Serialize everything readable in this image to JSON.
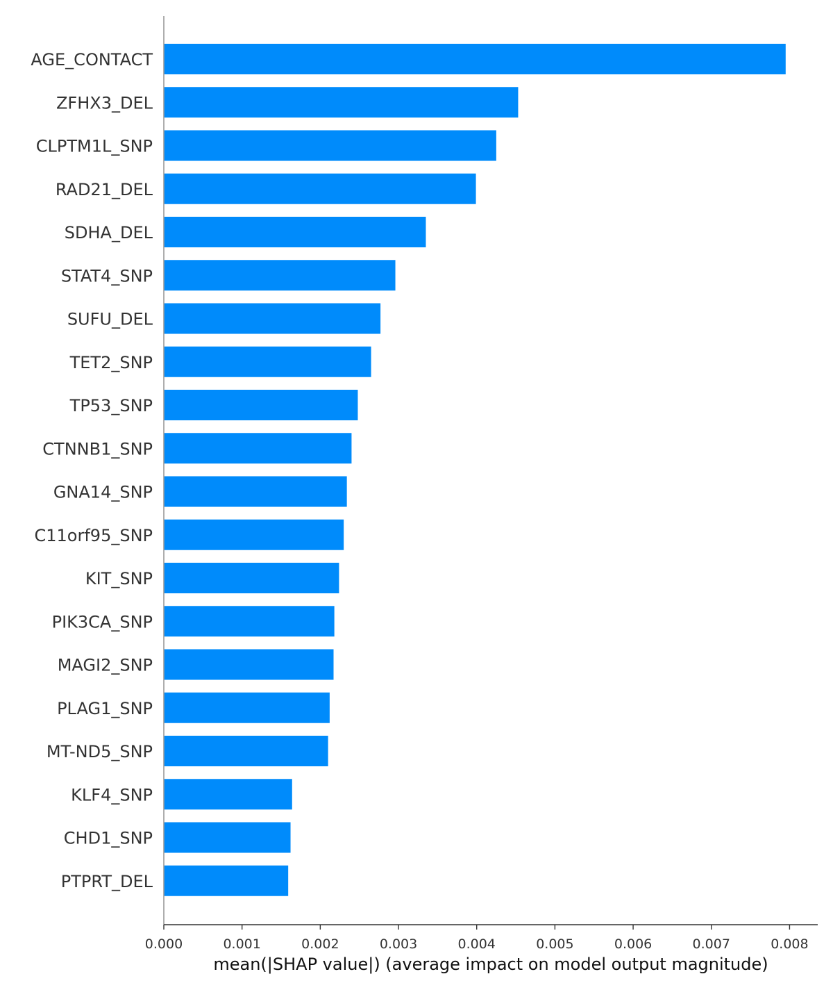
{
  "chart_data": {
    "type": "bar",
    "orientation": "horizontal",
    "categories": [
      "AGE_CONTACT",
      "ZFHX3_DEL",
      "CLPTM1L_SNP",
      "RAD21_DEL",
      "SDHA_DEL",
      "STAT4_SNP",
      "SUFU_DEL",
      "TET2_SNP",
      "TP53_SNP",
      "CTNNB1_SNP",
      "GNA14_SNP",
      "C11orf95_SNP",
      "KIT_SNP",
      "PIK3CA_SNP",
      "MAGI2_SNP",
      "PLAG1_SNP",
      "MT-ND5_SNP",
      "KLF4_SNP",
      "CHD1_SNP",
      "PTPRT_DEL"
    ],
    "values": [
      0.00795,
      0.00453,
      0.00425,
      0.00399,
      0.00335,
      0.00296,
      0.00277,
      0.00265,
      0.00248,
      0.0024,
      0.00234,
      0.0023,
      0.00224,
      0.00218,
      0.00217,
      0.00212,
      0.0021,
      0.00164,
      0.00162,
      0.00159
    ],
    "title": "",
    "xlabel": "mean(|SHAP value|) (average impact on model output magnitude)",
    "ylabel": "",
    "xlim": [
      0,
      0.00836
    ],
    "xticks": [
      0,
      0.001,
      0.002,
      0.003,
      0.004,
      0.005,
      0.006,
      0.007,
      0.008
    ],
    "xtick_labels": [
      "0.000",
      "0.001",
      "0.002",
      "0.003",
      "0.004",
      "0.005",
      "0.006",
      "0.007",
      "0.008"
    ],
    "grid": false,
    "legend": "none",
    "bar_color": "#008bfb"
  }
}
